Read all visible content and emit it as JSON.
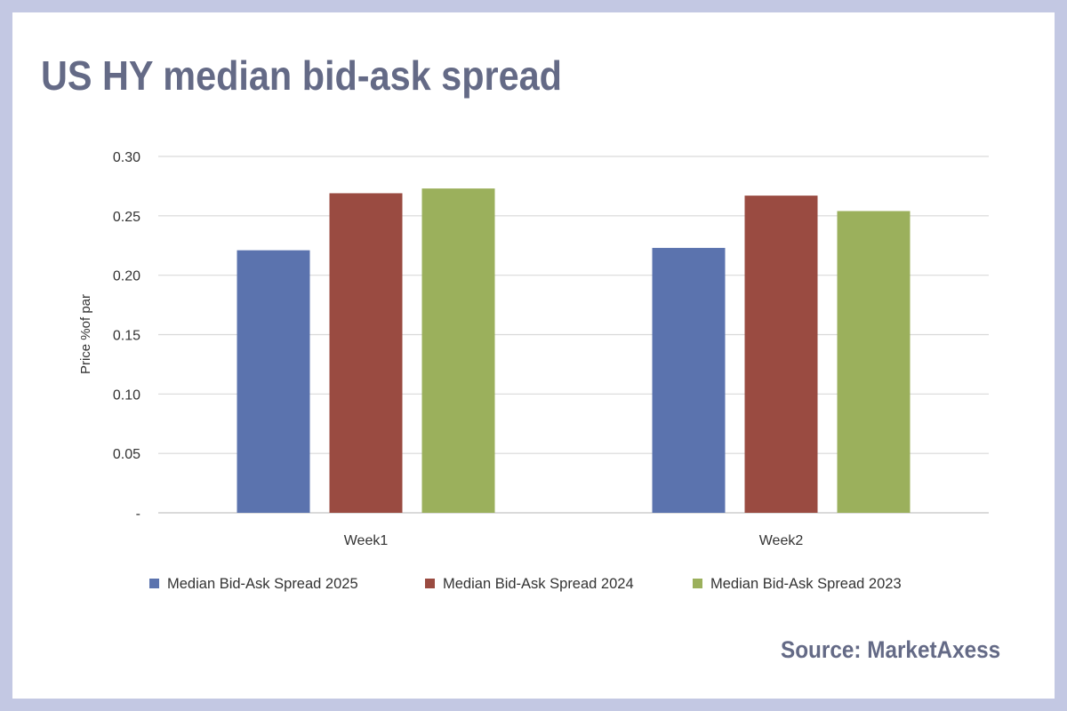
{
  "title": "US HY median bid-ask spread",
  "source": "Source: MarketAxess",
  "chart_data": {
    "type": "bar",
    "title": "US HY median bid-ask spread",
    "xlabel": "",
    "ylabel": "Price %of par",
    "categories": [
      "Week1",
      "Week2"
    ],
    "ylim": [
      0,
      0.3
    ],
    "yticks": [
      {
        "value": 0,
        "label": "-"
      },
      {
        "value": 0.05,
        "label": "0.05"
      },
      {
        "value": 0.1,
        "label": "0.10"
      },
      {
        "value": 0.15,
        "label": "0.15"
      },
      {
        "value": 0.2,
        "label": "0.20"
      },
      {
        "value": 0.25,
        "label": "0.25"
      },
      {
        "value": 0.3,
        "label": "0.30"
      }
    ],
    "grid": true,
    "legend_position": "bottom",
    "series": [
      {
        "name": "Median Bid-Ask Spread 2025",
        "color": "#5b73ae",
        "values": [
          0.221,
          0.223
        ]
      },
      {
        "name": "Median Bid-Ask Spread 2024",
        "color": "#9a4b41",
        "values": [
          0.269,
          0.267
        ]
      },
      {
        "name": "Median Bid-Ask Spread 2023",
        "color": "#9bb05c",
        "values": [
          0.273,
          0.254
        ]
      }
    ]
  }
}
